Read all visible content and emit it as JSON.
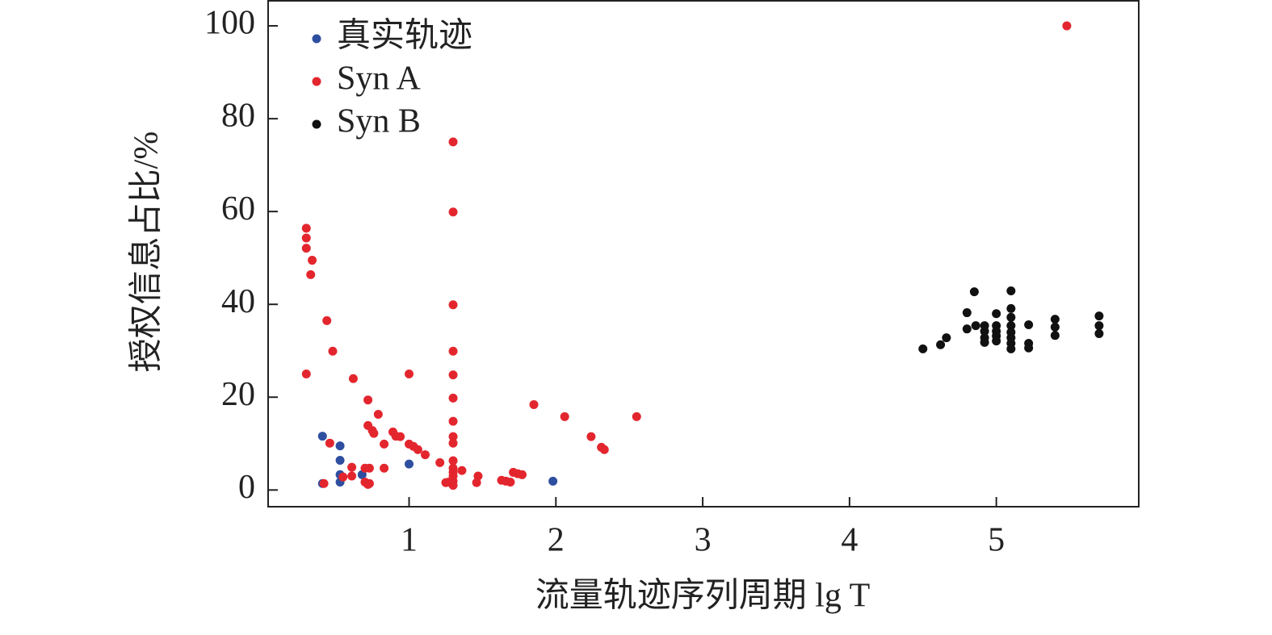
{
  "chart_data": {
    "type": "scatter",
    "xlabel": "流量轨迹序列周期 lg T",
    "ylabel": "授权信息占比/%",
    "xlim": [
      0.04,
      5.97
    ],
    "ylim": [
      -3.6,
      105.4
    ],
    "xticks": [
      1,
      2,
      3,
      4,
      5
    ],
    "yticks": [
      0,
      20,
      40,
      60,
      80,
      100
    ],
    "legend": "upper left",
    "series": [
      {
        "name": "真实轨迹",
        "color": "#2e4fa0",
        "x": [
          0.41,
          0.41,
          0.53,
          0.53,
          0.53,
          0.53,
          0.68,
          1.0,
          1.98
        ],
        "values": [
          11.6,
          1.4,
          9.5,
          6.4,
          3.3,
          1.7,
          3.3,
          5.6,
          1.9
        ]
      },
      {
        "name": "Syn A",
        "color": "#e3262e",
        "x": [
          0.3,
          0.3,
          0.3,
          0.34,
          0.33,
          0.3,
          0.44,
          0.48,
          0.62,
          0.72,
          0.79,
          0.72,
          0.75,
          0.76,
          0.89,
          0.91,
          0.94,
          0.83,
          1.0,
          1.0,
          1.03,
          1.06,
          1.11,
          1.21,
          0.46,
          0.61,
          0.61,
          0.55,
          0.7,
          0.73,
          0.83,
          0.42,
          0.7,
          0.72,
          0.73,
          1.3,
          1.3,
          1.3,
          1.3,
          1.3,
          1.3,
          1.3,
          1.3,
          1.3,
          1.3,
          1.3,
          1.3,
          1.3,
          1.3,
          1.3,
          1.27,
          1.25,
          1.36,
          1.47,
          1.46,
          1.63,
          1.66,
          1.69,
          1.71,
          1.74,
          1.77,
          1.85,
          2.06,
          2.24,
          2.31,
          2.33,
          2.55,
          5.48
        ],
        "values": [
          56.4,
          54.3,
          52.1,
          49.5,
          46.4,
          25.0,
          36.5,
          29.9,
          24.0,
          19.4,
          16.3,
          13.9,
          12.8,
          12.2,
          12.5,
          11.6,
          11.5,
          9.9,
          25.0,
          9.9,
          9.4,
          8.7,
          7.6,
          5.9,
          10.1,
          4.9,
          3.0,
          2.8,
          4.7,
          4.7,
          4.7,
          1.4,
          1.7,
          1.2,
          1.4,
          75.0,
          59.9,
          39.9,
          29.9,
          24.8,
          19.8,
          14.8,
          11.5,
          10.1,
          6.3,
          4.7,
          3.8,
          3.0,
          1.9,
          1.0,
          1.7,
          1.6,
          4.2,
          3.0,
          1.6,
          2.1,
          1.9,
          1.7,
          3.8,
          3.5,
          3.3,
          18.4,
          15.8,
          11.5,
          9.2,
          8.7,
          15.8,
          100
        ]
      },
      {
        "name": "Syn B",
        "color": "#111111",
        "x": [
          4.5,
          4.62,
          4.66,
          4.8,
          4.8,
          4.85,
          4.86,
          4.92,
          4.92,
          4.92,
          4.92,
          5.0,
          5.0,
          5.0,
          5.0,
          5.0,
          5.1,
          5.1,
          5.1,
          5.1,
          5.1,
          5.1,
          5.1,
          5.1,
          5.22,
          5.22,
          5.22,
          5.4,
          5.4,
          5.4,
          5.7,
          5.7,
          5.7
        ],
        "values": [
          30.4,
          31.3,
          32.8,
          38.2,
          34.7,
          42.7,
          35.4,
          35.4,
          34.2,
          32.8,
          31.8,
          38.0,
          35.4,
          34.2,
          33.2,
          32.1,
          42.9,
          39.1,
          37.2,
          35.4,
          34.0,
          32.8,
          31.6,
          30.4,
          35.6,
          31.6,
          30.6,
          36.8,
          35.1,
          33.3,
          37.5,
          35.4,
          33.7
        ]
      }
    ]
  }
}
